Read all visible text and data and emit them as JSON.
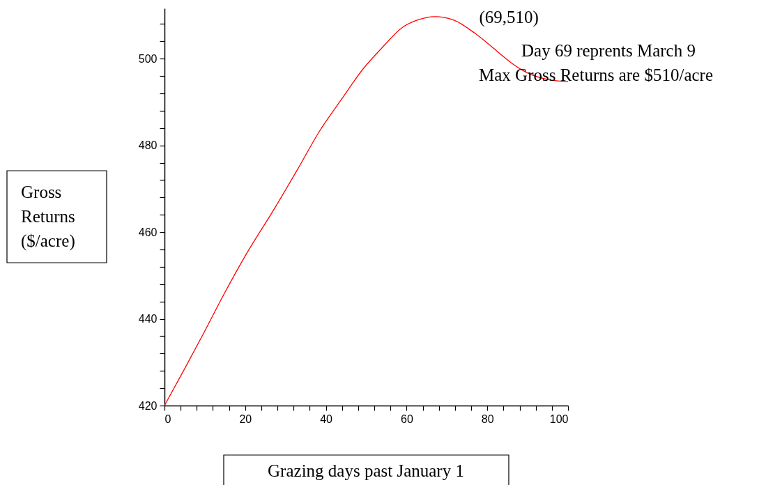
{
  "chart_data": {
    "type": "line",
    "xlabel": "Grazing days past January 1",
    "ylabel": "Gross Returns ($/acre)",
    "x": [
      0,
      5,
      10,
      14.8,
      20,
      27.3,
      33,
      38.5,
      44,
      49.1,
      53.8,
      59.1,
      63,
      67,
      71.7,
      77,
      82.3,
      86,
      90.2,
      95,
      100
    ],
    "series": [
      {
        "color": "#ff0000",
        "values": [
          420,
          428.5,
          437.2,
          445.8,
          454.5,
          465.5,
          474.5,
          483.4,
          490.8,
          497.5,
          502.4,
          507.3,
          509,
          509.7,
          508.9,
          505.8,
          501.8,
          499,
          496.6,
          495.2,
          494.7
        ]
      }
    ],
    "xlim": [
      0,
      100
    ],
    "ylim": [
      420,
      511.6
    ],
    "xticks": [
      0,
      {
        "value": 4,
        "label": null
      },
      {
        "value": 8,
        "label": null
      },
      {
        "value": 12,
        "label": null
      },
      {
        "value": 16,
        "label": null
      },
      20,
      {
        "value": 24,
        "label": null
      },
      {
        "value": 28,
        "label": null
      },
      {
        "value": 32,
        "label": null
      },
      {
        "value": 36,
        "label": null
      },
      40,
      {
        "value": 44,
        "label": null
      },
      {
        "value": 48,
        "label": null
      },
      {
        "value": 52,
        "label": null
      },
      {
        "value": 56,
        "label": null
      },
      60,
      {
        "value": 64,
        "label": null
      },
      {
        "value": 68,
        "label": null
      },
      {
        "value": 72,
        "label": null
      },
      {
        "value": 76,
        "label": null
      },
      80,
      {
        "value": 84,
        "label": null
      },
      {
        "value": 88,
        "label": null
      },
      {
        "value": 92,
        "label": null
      },
      {
        "value": 96,
        "label": null
      },
      100
    ],
    "yticks": [
      420,
      {
        "value": 424,
        "label": null
      },
      {
        "value": 428,
        "label": null
      },
      {
        "value": 432,
        "label": null
      },
      {
        "value": 436,
        "label": null
      },
      440,
      {
        "value": 444,
        "label": null
      },
      {
        "value": 448,
        "label": null
      },
      {
        "value": 452,
        "label": null
      },
      {
        "value": 456,
        "label": null
      },
      460,
      {
        "value": 464,
        "label": null
      },
      {
        "value": 468,
        "label": null
      },
      {
        "value": 472,
        "label": null
      },
      {
        "value": 476,
        "label": null
      },
      480,
      {
        "value": 484,
        "label": null
      },
      {
        "value": 488,
        "label": null
      },
      {
        "value": 492,
        "label": null
      },
      {
        "value": 496,
        "label": null
      },
      500,
      {
        "value": 504,
        "label": null
      },
      {
        "value": 508,
        "label": null
      }
    ],
    "annotations": [
      {
        "text": "(69,510)",
        "x": 69,
        "y": 510
      },
      "Day 69 reprents March 9",
      "Max Gross Returns are $510/acre"
    ],
    "grid": false,
    "marker": "none",
    "line_style": "solid"
  }
}
